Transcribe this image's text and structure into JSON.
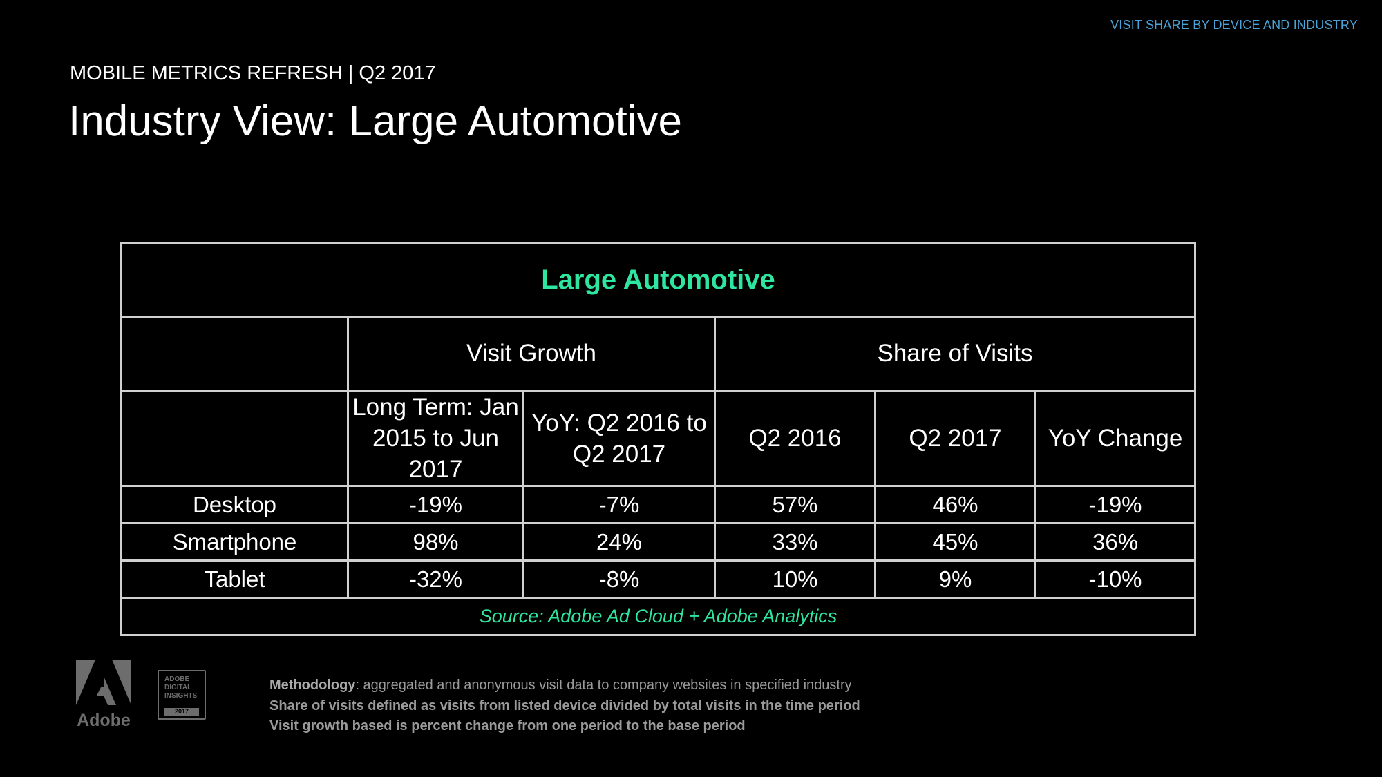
{
  "header": {
    "section_label": "VISIT SHARE BY DEVICE AND INDUSTRY",
    "subtitle": "MOBILE METRICS REFRESH | Q2 2017",
    "title": "Industry View: Large Automotive"
  },
  "table": {
    "title": "Large Automotive",
    "group_headers": [
      "Visit Growth",
      "Share of Visits"
    ],
    "column_headers": [
      "Long Term: Jan 2015 to Jun 2017",
      "YoY: Q2 2016 to Q2 2017",
      "Q2 2016",
      "Q2 2017",
      "YoY Change"
    ],
    "rows": [
      {
        "label": "Desktop",
        "cells": [
          "-19%",
          "-7%",
          "57%",
          "46%",
          "-19%"
        ]
      },
      {
        "label": "Smartphone",
        "cells": [
          "98%",
          "24%",
          "33%",
          "45%",
          "36%"
        ]
      },
      {
        "label": "Tablet",
        "cells": [
          "-32%",
          "-8%",
          "10%",
          "9%",
          "-10%"
        ]
      }
    ],
    "source": "Source: Adobe Ad Cloud + Adobe Analytics"
  },
  "footer": {
    "logo_text": "Adobe",
    "badge_lines": [
      "ADOBE",
      "DIGITAL",
      "INSIGHTS"
    ],
    "badge_year": "2017",
    "methodology_label": "Methodology",
    "methodology_text": ": aggregated and anonymous visit data to company websites in specified industry",
    "line2": "Share of visits defined as visits from listed device divided by total visits in the time period",
    "line3": "Visit growth based is percent change from one period to the base period"
  },
  "colors": {
    "background": "#000000",
    "accent_green": "#2ee6a0",
    "negative_pink": "#e5348e",
    "section_label_blue": "#4aa3d8"
  }
}
